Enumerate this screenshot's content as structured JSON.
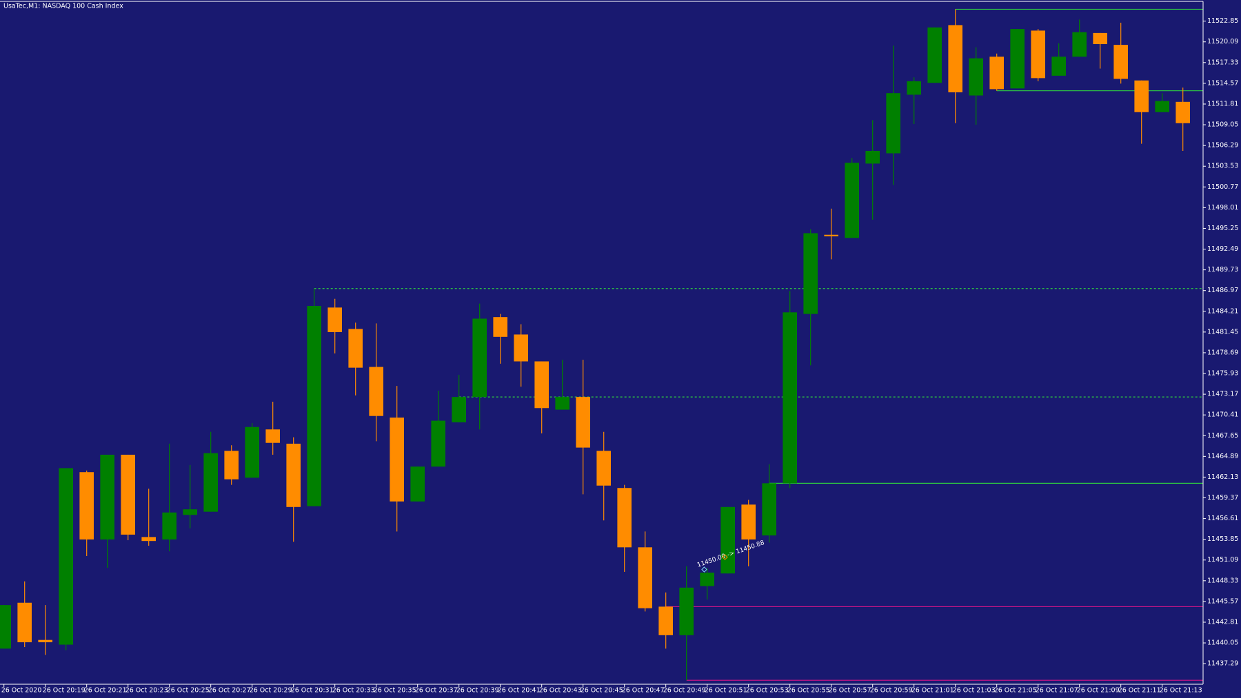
{
  "chart_data": {
    "type": "candlestick",
    "title": "UsaTec,M1:  NASDAQ 100 Cash Index",
    "background": "#191970",
    "up_color": "#008000",
    "down_color": "#ff8c00",
    "categories": [
      "26 Oct 2020",
      null,
      "26 Oct 20:19",
      null,
      "26 Oct 20:21",
      null,
      "26 Oct 20:23",
      null,
      "26 Oct 20:25",
      null,
      "26 Oct 20:27",
      null,
      "26 Oct 20:29",
      null,
      "26 Oct 20:31",
      null,
      "26 Oct 20:33",
      null,
      "26 Oct 20:35",
      null,
      "26 Oct 20:37",
      null,
      "26 Oct 20:39",
      null,
      "26 Oct 20:41",
      null,
      "26 Oct 20:43",
      null,
      "26 Oct 20:45",
      null,
      "26 Oct 20:47",
      null,
      "26 Oct 20:49",
      null,
      "26 Oct 20:51",
      null,
      "26 Oct 20:53",
      null,
      "26 Oct 20:55",
      null,
      "26 Oct 20:57",
      null,
      "26 Oct 20:59",
      null,
      "26 Oct 21:01",
      null,
      "26 Oct 21:03",
      null,
      "26 Oct 21:05",
      null,
      "26 Oct 21:07",
      null,
      "26 Oct 21:09",
      null,
      "26 Oct 21:11",
      null,
      "26 Oct 21:13",
      null
    ],
    "open": [
      11439.29,
      11445.4,
      11440.45,
      11439.82,
      11462.79,
      11453.83,
      11465.11,
      11454.15,
      11453.83,
      11457.1,
      11457.52,
      11465.63,
      11462.05,
      11468.48,
      11466.58,
      11458.26,
      11484.71,
      11481.86,
      11476.8,
      11470.06,
      11458.89,
      11463.53,
      11469.43,
      11472.8,
      11483.44,
      11481.12,
      11477.54,
      11471.11,
      11472.8,
      11465.63,
      11460.68,
      11452.78,
      11444.88,
      11441.08,
      11447.62,
      11449.3,
      11458.47,
      11454.36,
      11461.31,
      11483.86,
      11494.4,
      11493.98,
      11503.88,
      11505.25,
      11513.05,
      11514.63,
      11522.32,
      11512.95,
      11518.11,
      11513.89,
      11521.59,
      11515.58,
      11518.11,
      11521.27,
      11519.69,
      11514.95,
      11510.73,
      11512.1
    ],
    "high": [
      11445.09,
      11448.25,
      11445.09,
      11463.32,
      11463.0,
      11465.11,
      11465.11,
      11460.58,
      11466.58,
      11463.74,
      11468.16,
      11466.37,
      11469.32,
      11472.17,
      11467.43,
      11487.24,
      11485.87,
      11482.7,
      11482.6,
      11474.27,
      11463.53,
      11473.64,
      11475.75,
      11485.23,
      11483.86,
      11482.49,
      11477.54,
      11477.75,
      11477.75,
      11468.16,
      11461.1,
      11454.89,
      11446.77,
      11450.25,
      11450.04,
      11458.15,
      11459.1,
      11463.84,
      11486.92,
      11495.14,
      11497.88,
      11504.62,
      11509.68,
      11519.58,
      11515.37,
      11522.01,
      11524.43,
      11519.37,
      11518.53,
      11521.8,
      11521.8,
      11519.9,
      11523.06,
      11521.27,
      11522.64,
      11514.95,
      11513.26,
      11514.0
    ],
    "low": [
      11439.29,
      11439.5,
      11438.45,
      11439.08,
      11451.62,
      11450.04,
      11453.73,
      11452.99,
      11452.25,
      11455.31,
      11457.52,
      11461.1,
      11462.05,
      11465.11,
      11453.52,
      11458.26,
      11478.6,
      11473.01,
      11466.9,
      11454.89,
      11458.89,
      11463.53,
      11469.43,
      11468.48,
      11477.23,
      11474.17,
      11467.95,
      11471.11,
      11459.84,
      11456.36,
      11449.51,
      11444.24,
      11439.29,
      11435.08,
      11445.83,
      11449.3,
      11450.25,
      11453.41,
      11460.68,
      11477.01,
      11491.13,
      11493.98,
      11496.4,
      11501.04,
      11509.15,
      11514.63,
      11509.26,
      11509.05,
      11513.58,
      11513.89,
      11514.84,
      11515.58,
      11518.11,
      11516.53,
      11514.53,
      11506.52,
      11510.73,
      11505.57
    ],
    "close": [
      11445.09,
      11440.14,
      11440.14,
      11463.32,
      11453.83,
      11465.11,
      11454.47,
      11453.62,
      11457.42,
      11457.84,
      11465.32,
      11461.84,
      11468.8,
      11466.69,
      11458.15,
      11484.92,
      11481.44,
      11476.7,
      11470.27,
      11458.89,
      11463.53,
      11469.64,
      11472.8,
      11483.23,
      11480.81,
      11477.54,
      11471.32,
      11472.8,
      11466.06,
      11461.0,
      11452.78,
      11444.67,
      11441.08,
      11447.41,
      11449.41,
      11458.15,
      11453.83,
      11461.31,
      11484.07,
      11494.61,
      11494.19,
      11503.99,
      11505.57,
      11513.26,
      11514.84,
      11522.01,
      11513.37,
      11517.9,
      11513.79,
      11521.8,
      11515.26,
      11518.11,
      11521.38,
      11519.79,
      11515.16,
      11510.73,
      11512.21,
      11509.26
    ],
    "levels": [
      {
        "value": 11487.24,
        "color": "#2ecc40",
        "style": "dotted"
      },
      {
        "value": 11472.8,
        "color": "#2ecc40",
        "style": "dotted"
      },
      {
        "value": 11461.31,
        "color": "#2ecc40",
        "style": "solid"
      },
      {
        "value": 11513.58,
        "color": "#2ecc40",
        "style": "solid"
      },
      {
        "value": 11524.43,
        "color": "#2ecc40",
        "style": "solid"
      },
      {
        "value": 11444.88,
        "color": "#c71585",
        "style": "solid"
      },
      {
        "value": 11435.08,
        "color": "#c71585",
        "style": "solid"
      }
    ],
    "annotation": "11450.00 -> 11450.88",
    "ylim": [
      11434.55,
      11525.48
    ],
    "yticks": [
      11437.29,
      11440.05,
      11442.81,
      11445.57,
      11448.33,
      11451.09,
      11453.85,
      11456.61,
      11459.37,
      11462.13,
      11464.89,
      11467.65,
      11470.41,
      11473.17,
      11475.93,
      11478.69,
      11481.45,
      11484.21,
      11486.97,
      11489.73,
      11492.49,
      11495.25,
      11498.01,
      11500.77,
      11503.53,
      11506.29,
      11509.05,
      11511.81,
      11514.57,
      11517.33,
      11520.09,
      11522.85
    ]
  }
}
